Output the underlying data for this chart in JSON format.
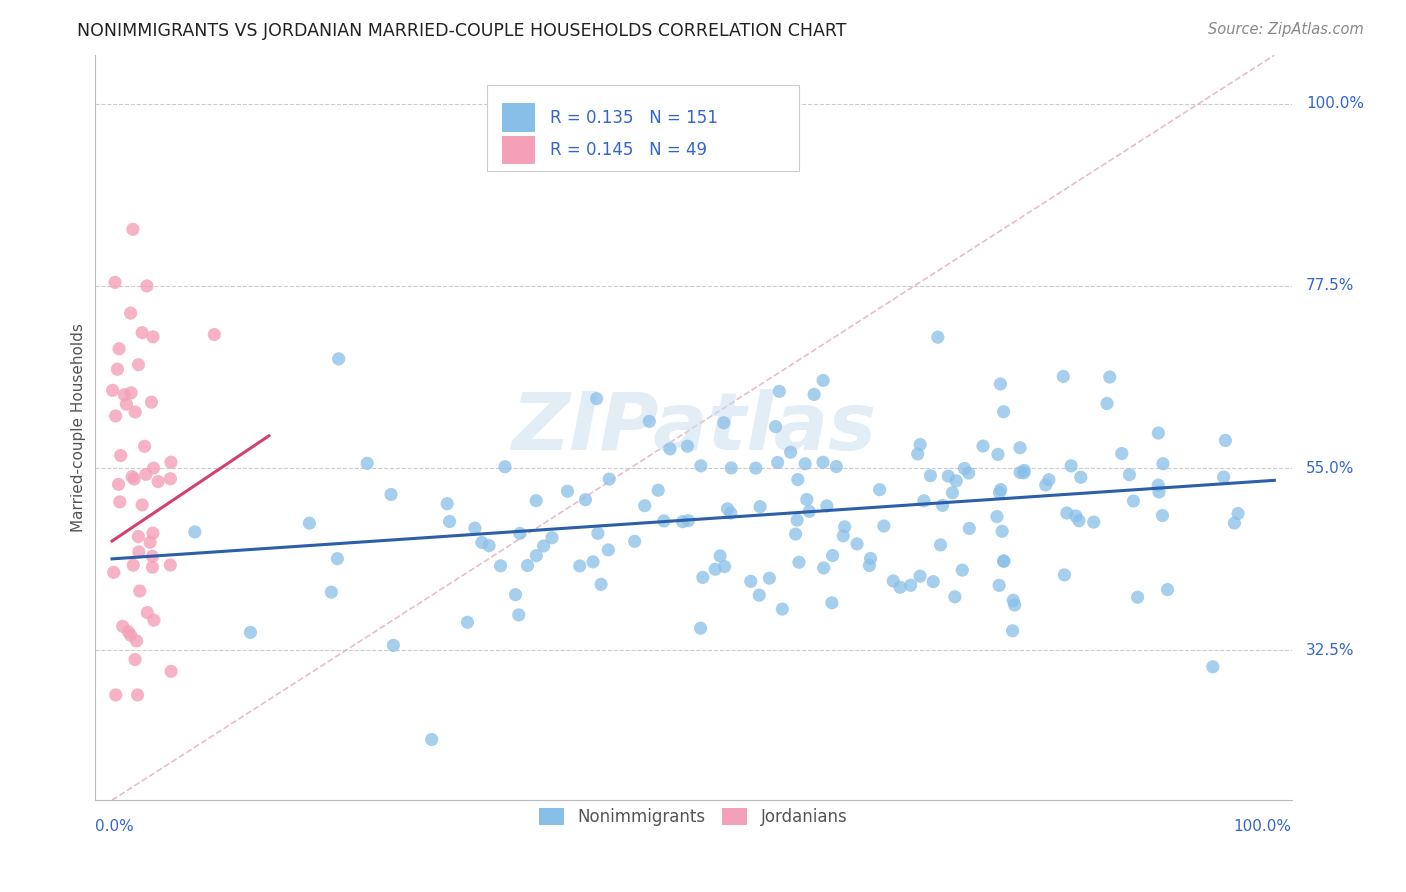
{
  "title": "NONIMMIGRANTS VS JORDANIAN MARRIED-COUPLE HOUSEHOLDS CORRELATION CHART",
  "source": "Source: ZipAtlas.com",
  "ylabel": "Married-couple Households",
  "ytick_labels": [
    "100.0%",
    "77.5%",
    "55.0%",
    "32.5%"
  ],
  "ytick_values": [
    1.0,
    0.775,
    0.55,
    0.325
  ],
  "legend_r1": "R = 0.135",
  "legend_n1": "N = 151",
  "legend_r2": "R = 0.145",
  "legend_n2": "N = 49",
  "blue_color": "#88bfe8",
  "pink_color": "#f4a0b8",
  "blue_line_color": "#2c5fa8",
  "pink_line_color": "#d44070",
  "dashed_line_color": "#e8b0c0",
  "watermark": "ZIPatlas",
  "blue_scatter_seed": 1234,
  "pink_scatter_seed": 5678
}
